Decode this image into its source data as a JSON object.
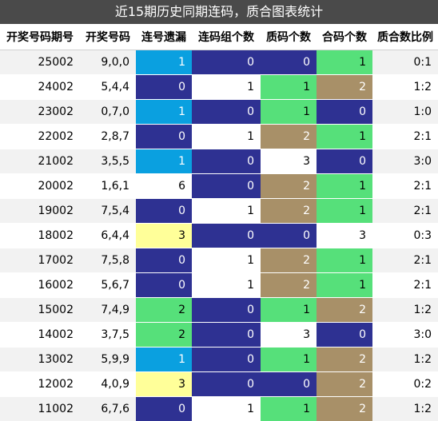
{
  "title": "近15期历史同期连码，质合图表统计",
  "headers": [
    "开奖号码期号",
    "开奖号码",
    "连号遗漏",
    "连码组个数",
    "质码个数",
    "合码个数",
    "质合数比例"
  ],
  "colors": {
    "navy": "#2e3192",
    "blue": "#0aa0e0",
    "green": "#56e07a",
    "tan": "#a89068",
    "yellow": "#ffff99",
    "white": "#ffffff"
  },
  "rows": [
    {
      "issue": "25002",
      "numbers": "9,0,0",
      "lianhao": "1",
      "lianma": "0",
      "zhi": "0",
      "he": "1",
      "ratio": "0:1",
      "c_lianhao": "blue",
      "c_lianma": "navy",
      "c_zhi": "navy",
      "c_he": "green"
    },
    {
      "issue": "24002",
      "numbers": "5,4,4",
      "lianhao": "0",
      "lianma": "1",
      "zhi": "1",
      "he": "2",
      "ratio": "1:2",
      "c_lianhao": "navy",
      "c_lianma": "white",
      "c_zhi": "green",
      "c_he": "tan"
    },
    {
      "issue": "23002",
      "numbers": "0,7,0",
      "lianhao": "1",
      "lianma": "0",
      "zhi": "1",
      "he": "0",
      "ratio": "1:0",
      "c_lianhao": "blue",
      "c_lianma": "navy",
      "c_zhi": "green",
      "c_he": "navy"
    },
    {
      "issue": "22002",
      "numbers": "2,8,7",
      "lianhao": "0",
      "lianma": "1",
      "zhi": "2",
      "he": "1",
      "ratio": "2:1",
      "c_lianhao": "navy",
      "c_lianma": "white",
      "c_zhi": "tan",
      "c_he": "green"
    },
    {
      "issue": "21002",
      "numbers": "3,5,5",
      "lianhao": "1",
      "lianma": "0",
      "zhi": "3",
      "he": "0",
      "ratio": "3:0",
      "c_lianhao": "blue",
      "c_lianma": "navy",
      "c_zhi": "white",
      "c_he": "navy"
    },
    {
      "issue": "20002",
      "numbers": "1,6,1",
      "lianhao": "6",
      "lianma": "0",
      "zhi": "2",
      "he": "1",
      "ratio": "2:1",
      "c_lianhao": "white",
      "c_lianma": "navy",
      "c_zhi": "tan",
      "c_he": "green"
    },
    {
      "issue": "19002",
      "numbers": "7,5,4",
      "lianhao": "0",
      "lianma": "1",
      "zhi": "2",
      "he": "1",
      "ratio": "2:1",
      "c_lianhao": "navy",
      "c_lianma": "white",
      "c_zhi": "tan",
      "c_he": "green"
    },
    {
      "issue": "18002",
      "numbers": "6,4,4",
      "lianhao": "3",
      "lianma": "0",
      "zhi": "0",
      "he": "3",
      "ratio": "0:3",
      "c_lianhao": "yellow",
      "c_lianma": "navy",
      "c_zhi": "navy",
      "c_he": "white"
    },
    {
      "issue": "17002",
      "numbers": "7,5,8",
      "lianhao": "0",
      "lianma": "1",
      "zhi": "2",
      "he": "1",
      "ratio": "2:1",
      "c_lianhao": "navy",
      "c_lianma": "white",
      "c_zhi": "tan",
      "c_he": "green"
    },
    {
      "issue": "16002",
      "numbers": "5,6,7",
      "lianhao": "0",
      "lianma": "1",
      "zhi": "2",
      "he": "1",
      "ratio": "2:1",
      "c_lianhao": "navy",
      "c_lianma": "white",
      "c_zhi": "tan",
      "c_he": "green"
    },
    {
      "issue": "15002",
      "numbers": "7,4,9",
      "lianhao": "2",
      "lianma": "0",
      "zhi": "1",
      "he": "2",
      "ratio": "1:2",
      "c_lianhao": "green",
      "c_lianma": "navy",
      "c_zhi": "green",
      "c_he": "tan"
    },
    {
      "issue": "14002",
      "numbers": "3,7,5",
      "lianhao": "2",
      "lianma": "0",
      "zhi": "3",
      "he": "0",
      "ratio": "3:0",
      "c_lianhao": "green",
      "c_lianma": "navy",
      "c_zhi": "white",
      "c_he": "navy"
    },
    {
      "issue": "13002",
      "numbers": "5,9,9",
      "lianhao": "1",
      "lianma": "0",
      "zhi": "1",
      "he": "2",
      "ratio": "1:2",
      "c_lianhao": "blue",
      "c_lianma": "navy",
      "c_zhi": "green",
      "c_he": "tan"
    },
    {
      "issue": "12002",
      "numbers": "4,0,9",
      "lianhao": "3",
      "lianma": "0",
      "zhi": "0",
      "he": "2",
      "ratio": "0:2",
      "c_lianhao": "yellow",
      "c_lianma": "navy",
      "c_zhi": "navy",
      "c_he": "tan"
    },
    {
      "issue": "11002",
      "numbers": "6,7,6",
      "lianhao": "0",
      "lianma": "1",
      "zhi": "1",
      "he": "2",
      "ratio": "1:2",
      "c_lianhao": "navy",
      "c_lianma": "white",
      "c_zhi": "green",
      "c_he": "tan"
    }
  ]
}
